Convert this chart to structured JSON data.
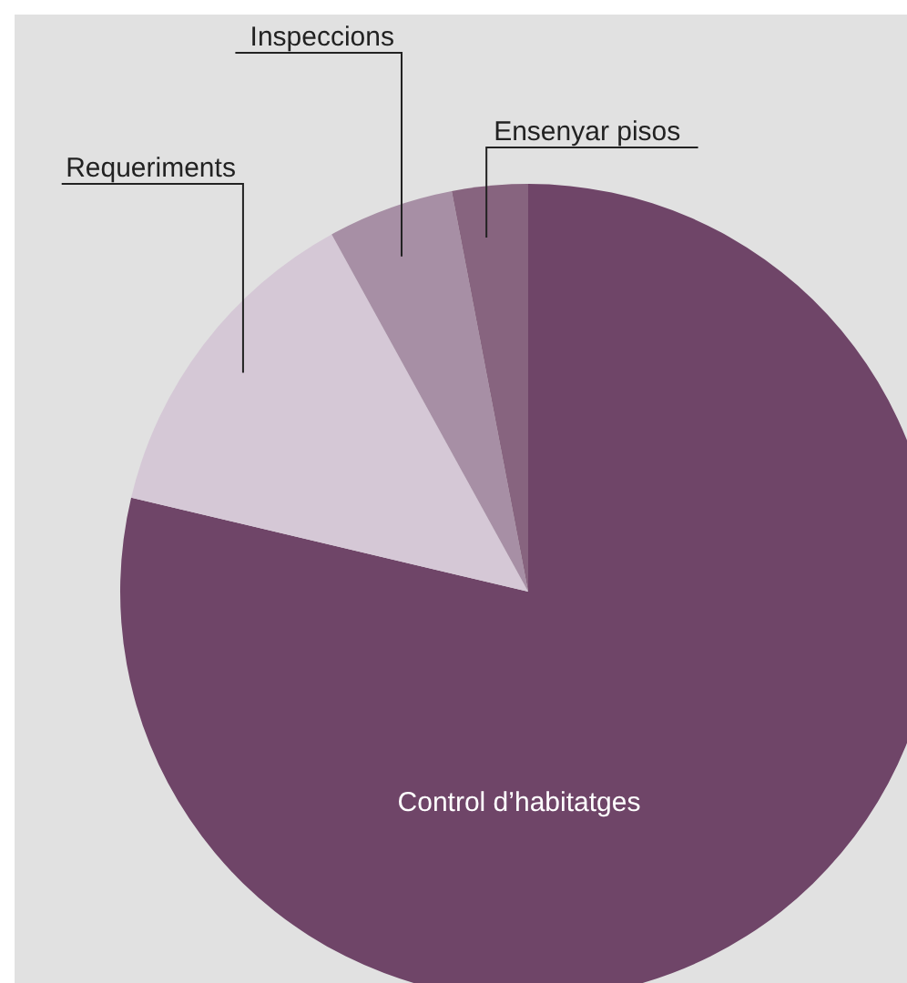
{
  "chart_data": {
    "type": "pie",
    "categories": [
      "Control d’habitatges",
      "Requeriments",
      "Inspeccions",
      "Ensenyar pisos"
    ],
    "values": [
      78.7,
      13.3,
      5,
      3
    ],
    "colors": [
      "#6f4568",
      "#d5c8d6",
      "#a78fa5",
      "#87647f"
    ]
  }
}
